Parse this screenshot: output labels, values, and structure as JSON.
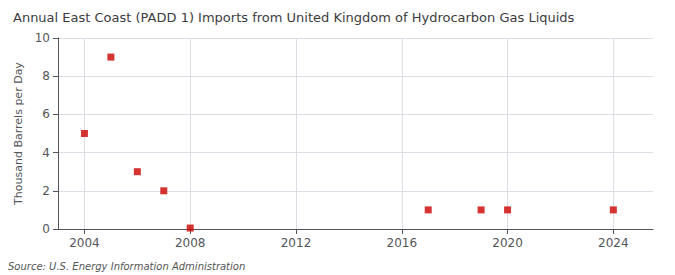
{
  "chart_data": {
    "type": "scatter",
    "title": "Annual East Coast (PADD 1) Imports from United Kingdom of Hydrocarbon Gas Liquids",
    "ylabel": "Thousand Barrels per Day",
    "annotations": [
      "Source: U.S. Energy Information Administration"
    ],
    "x": [
      2004,
      2005,
      2006,
      2007,
      2008,
      2017,
      2019,
      2020,
      2024
    ],
    "values": [
      5.0,
      9.0,
      3.0,
      2.0,
      0.05,
      1.0,
      1.0,
      1.0,
      1.0
    ],
    "color": "#cc0000",
    "marker": "square",
    "xlim": [
      2003,
      2025.5
    ],
    "xticks": [
      2004,
      2008,
      2012,
      2016,
      2020,
      2024
    ],
    "ylim": [
      0,
      10
    ],
    "yticks": [
      0,
      2,
      4,
      6,
      8,
      10
    ],
    "grid": true
  }
}
